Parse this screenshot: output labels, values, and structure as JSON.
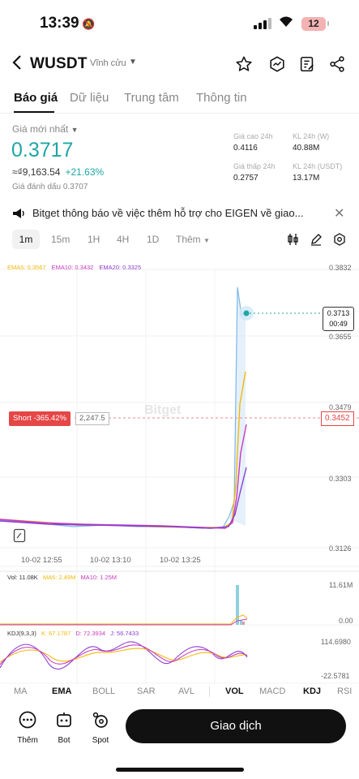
{
  "status_bar": {
    "time": "13:39",
    "battery": "12"
  },
  "header": {
    "pair": "WUSDT",
    "contract_type": "Vĩnh cửu"
  },
  "tabs": [
    {
      "label": "Báo giá",
      "active": true
    },
    {
      "label": "Dữ liệu"
    },
    {
      "label": "Trung tâm"
    },
    {
      "label": "Thông tin"
    }
  ],
  "quote": {
    "label": "Giá mới nhất",
    "price": "0.3717",
    "fiat": "≈₫9,163.54",
    "change": "+21.63%",
    "mark_price": "Giá đánh dấu  0.3707",
    "stats": [
      {
        "label": "Giá cao 24h",
        "value": "0.4116"
      },
      {
        "label": "KL 24h (W)",
        "value": "40.88M"
      },
      {
        "label": "Giá thấp 24h",
        "value": "0.2757"
      },
      {
        "label": "KL 24h (USDT)",
        "value": "13.17M"
      }
    ]
  },
  "notice": {
    "text": "Bitget thông báo về việc thêm hỗ trợ cho EIGEN về giao..."
  },
  "timeframes": [
    "1m",
    "15m",
    "1H",
    "4H",
    "1D",
    "Thêm"
  ],
  "chart": {
    "ema_legend": {
      "ema5": "EMA5: 0.3567",
      "ema10": "EMA10: 0.3432",
      "ema20": "EMA20: 0.3325"
    },
    "price_ticks": [
      "0.3832",
      "0.3655",
      "0.3479",
      "0.3303",
      "0.3126"
    ],
    "current_price_tag": "0.3713",
    "countdown": "00:49",
    "short_label": "Short -365.42%",
    "short_qty": "2,247.5",
    "short_price": "0.3452",
    "time_ticks": [
      "10-02 12:55",
      "10-02 13:10",
      "10-02 13:25"
    ],
    "watermark": "Bitget",
    "vol_legend": {
      "vol": "Vol: 11.08K",
      "ma5": "MA5: 2.49M",
      "ma10": "MA10: 1.25M"
    },
    "vol_ticks": [
      "11.61M",
      "0.00"
    ],
    "kdj_legend": {
      "name": "KDJ(9,3,3)",
      "k": "K: 67.1787",
      "d": "D: 72.3934",
      "j": "J: 56.7433"
    },
    "kdj_ticks": [
      "114.6980",
      "-22.5781"
    ],
    "colors": {
      "ema5": "#f0b90b",
      "ema10": "#c93bbd",
      "ema20": "#8a3fd1",
      "price": "#7fb7e6",
      "accent": "#1fa6a6",
      "short": "#e54646"
    }
  },
  "indicators": [
    {
      "label": "MA"
    },
    {
      "label": "EMA",
      "bold": true
    },
    {
      "label": "BOLL"
    },
    {
      "label": "SAR"
    },
    {
      "label": "AVL"
    },
    {
      "label": "VOL",
      "bold": true
    },
    {
      "label": "MACD"
    },
    {
      "label": "KDJ",
      "bold": true
    },
    {
      "label": "RSI"
    }
  ],
  "footer": {
    "more": "Thêm",
    "bot": "Bot",
    "spot": "Spot",
    "trade": "Giao dịch"
  }
}
